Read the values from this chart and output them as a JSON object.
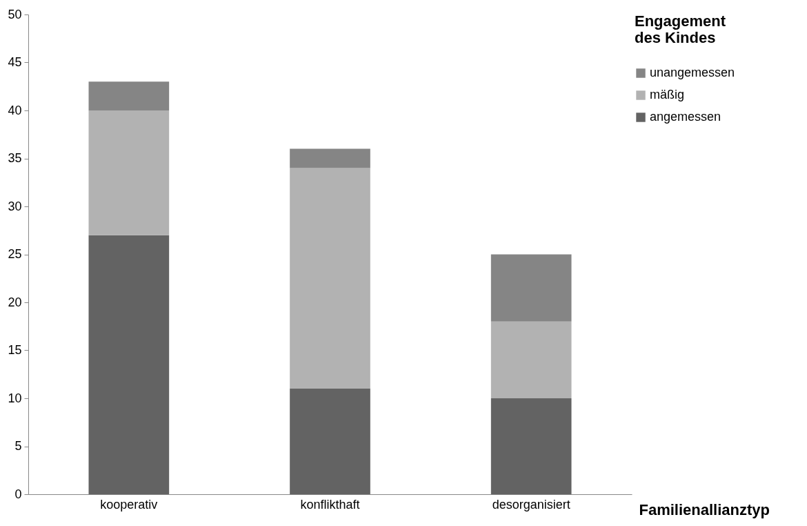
{
  "chart_data": {
    "type": "bar",
    "stacked": true,
    "xlabel": "Familienallianztyp",
    "legend_title": "Engagement des Kindes",
    "legend": "right",
    "grid": false,
    "categories": [
      "kooperativ",
      "konflikthaft",
      "desorganisiert"
    ],
    "series": [
      {
        "name": "angemessen",
        "color": "#636363",
        "values": [
          27,
          11,
          10
        ]
      },
      {
        "name": "mäßig",
        "color": "#b2b2b2",
        "values": [
          13,
          23,
          8
        ]
      },
      {
        "name": "unangemessen",
        "color": "#858585",
        "values": [
          3,
          2,
          7
        ]
      }
    ],
    "ylim": [
      0,
      50
    ],
    "yticks": [
      0,
      5,
      10,
      15,
      20,
      25,
      30,
      35,
      40,
      45,
      50
    ]
  }
}
